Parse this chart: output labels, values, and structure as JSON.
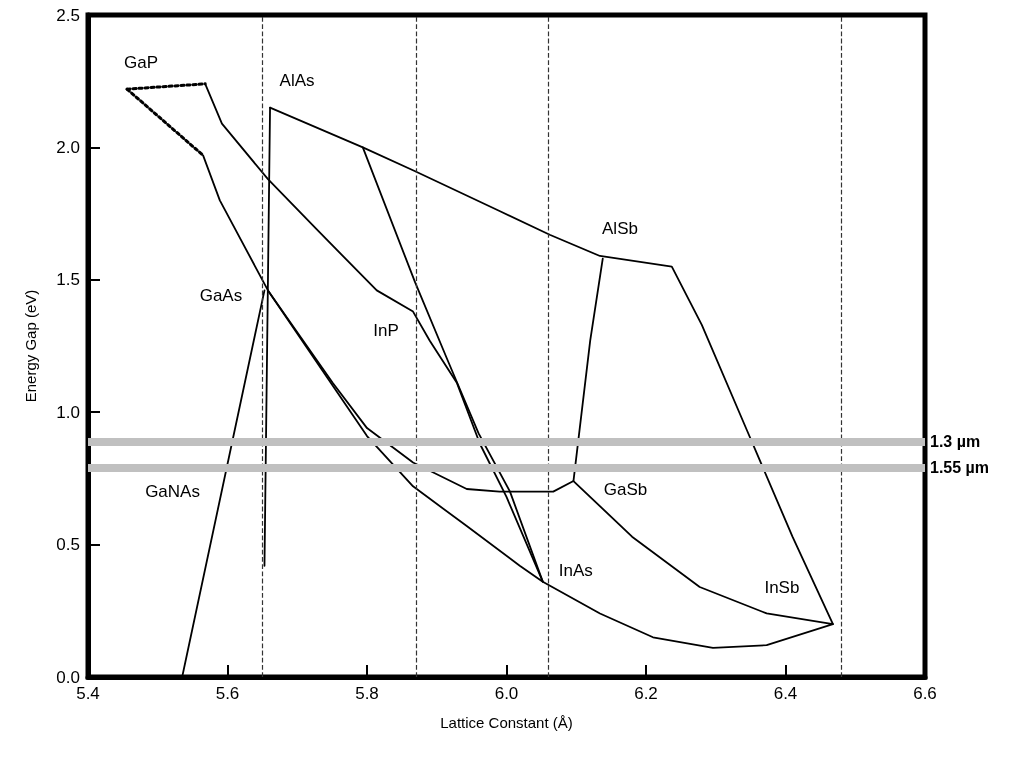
{
  "chart_data": {
    "type": "line",
    "xlabel": "Lattice Constant (Å)",
    "ylabel": "Energy Gap (eV)",
    "xlim": [
      5.4,
      6.6
    ],
    "ylim": [
      0,
      2.5
    ],
    "xticks": [
      5.4,
      5.6,
      5.8,
      {
        "value": 6.0,
        "label": "6.0"
      },
      6.2,
      6.4,
      6.6
    ],
    "yticks": [
      {
        "value": 0,
        "label": "0.0"
      },
      0.5,
      {
        "value": 1.0,
        "label": "1.0"
      },
      1.5,
      {
        "value": 2.0,
        "label": "2.0"
      },
      2.5
    ],
    "grid": false,
    "marker": "none",
    "line_style": "solid",
    "series": [
      {
        "color": "#000000",
        "line_style": "dotted",
        "x": [
          5.456,
          5.568
        ],
        "values": [
          2.22,
          2.24
        ]
      },
      {
        "color": "#000000",
        "line_style": "dotted",
        "x": [
          5.456,
          5.565
        ],
        "values": [
          2.22,
          1.97
        ]
      },
      {
        "color": "#000000",
        "x": [
          5.568,
          5.592,
          5.658,
          5.728,
          5.814,
          5.866,
          5.89,
          5.929,
          5.962,
          6.0,
          6.052
        ],
        "values": [
          2.24,
          2.09,
          1.88,
          1.69,
          1.46,
          1.38,
          1.27,
          1.11,
          0.88,
          0.68,
          0.36
        ]
      },
      {
        "color": "#000000",
        "x": [
          5.565,
          5.589,
          5.658,
          5.751,
          5.8,
          5.866,
          5.943,
          5.99,
          6.067,
          6.096,
          6.12,
          6.138
        ],
        "values": [
          1.97,
          1.8,
          1.46,
          1.11,
          0.94,
          0.81,
          0.71,
          0.7,
          0.7,
          0.74,
          1.27,
          1.58
        ]
      },
      {
        "color": "#000000",
        "x": [
          5.661,
          5.794,
          5.869,
          5.99,
          6.062,
          6.134,
          6.237,
          6.28,
          6.345,
          6.41,
          6.468
        ],
        "values": [
          2.15,
          2.0,
          1.91,
          1.76,
          1.67,
          1.59,
          1.55,
          1.33,
          0.93,
          0.53,
          0.2
        ]
      },
      {
        "color": "#000000",
        "x": [
          5.661,
          5.653
        ],
        "values": [
          2.15,
          0.42
        ]
      },
      {
        "color": "#000000",
        "x": [
          5.535,
          5.653
        ],
        "values": [
          0,
          1.46
        ]
      },
      {
        "color": "#000000",
        "x": [
          5.658,
          5.8,
          5.866,
          5.943,
          6.019,
          6.052,
          6.134,
          6.21,
          6.296,
          6.373,
          6.468,
          6.373,
          6.277,
          6.18,
          6.096
        ],
        "values": [
          1.46,
          0.91,
          0.72,
          0.57,
          0.42,
          0.36,
          0.24,
          0.15,
          0.11,
          0.12,
          0.2,
          0.24,
          0.34,
          0.53,
          0.74
        ]
      },
      {
        "color": "#000000",
        "x": [
          5.794,
          5.869,
          5.915,
          5.96,
          6.005,
          6.052
        ],
        "values": [
          2.0,
          1.49,
          1.2,
          0.92,
          0.7,
          0.36
        ]
      }
    ],
    "ref_lines": [
      {
        "axis": "x",
        "value": 5.65,
        "color": "#333333",
        "line_style": "dashed"
      },
      {
        "axis": "x",
        "value": 5.87,
        "color": "#333333",
        "line_style": "dashed"
      },
      {
        "axis": "x",
        "value": 6.06,
        "color": "#333333",
        "line_style": "dashed"
      },
      {
        "axis": "x",
        "value": 6.48,
        "color": "#333333",
        "line_style": "dashed"
      },
      {
        "axis": "y",
        "value": 0.89,
        "label": "1.3 µm",
        "color": "#c0c0c0",
        "line_style": "solid"
      },
      {
        "axis": "y",
        "value": 0.79,
        "label": "1.55 µm",
        "color": "#c0c0c0",
        "line_style": "solid"
      }
    ],
    "annotations": [
      {
        "text": "GaP",
        "x": 5.456,
        "y": 2.22
      },
      {
        "text": "AlAs",
        "x": 5.661,
        "y": 2.15
      },
      {
        "text": "GaAs",
        "x": 5.658,
        "y": 1.46
      },
      {
        "text": "InP",
        "x": 5.866,
        "y": 1.38
      },
      {
        "text": "AlSb",
        "x": 6.134,
        "y": 1.59
      },
      {
        "text": "GaNAs",
        "x": 5.59,
        "y": 0.68
      },
      {
        "text": "GaSb",
        "x": 6.096,
        "y": 0.74
      },
      {
        "text": "InAs",
        "x": 6.052,
        "y": 0.36
      },
      {
        "text": "InSb",
        "x": 6.468,
        "y": 0.2
      }
    ]
  }
}
